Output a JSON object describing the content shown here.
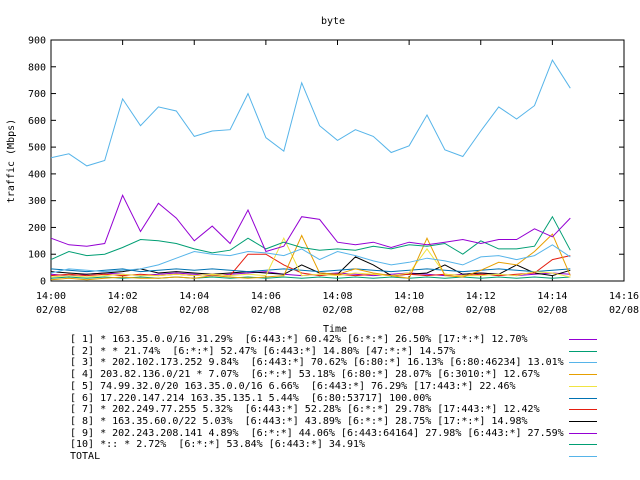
{
  "chart_data": {
    "type": "line",
    "title": "byte",
    "xlabel": "Time",
    "ylabel": "traffic (Mbps)",
    "ylim": [
      0,
      900
    ],
    "yticks": [
      "0",
      "100",
      "200",
      "300",
      "400",
      "500",
      "600",
      "700",
      "800",
      "900"
    ],
    "xlim": [
      0,
      16
    ],
    "xticks": [
      {
        "time": "14:00",
        "date": "02/08"
      },
      {
        "time": "14:02",
        "date": "02/08"
      },
      {
        "time": "14:04",
        "date": "02/08"
      },
      {
        "time": "14:06",
        "date": "02/08"
      },
      {
        "time": "14:08",
        "date": "02/08"
      },
      {
        "time": "14:10",
        "date": "02/08"
      },
      {
        "time": "14:12",
        "date": "02/08"
      },
      {
        "time": "14:14",
        "date": "02/08"
      },
      {
        "time": "14:16",
        "date": "02/08"
      }
    ],
    "x": [
      0.0,
      0.5,
      1.0,
      1.5,
      2.0,
      2.5,
      3.0,
      3.5,
      4.0,
      4.5,
      5.0,
      5.5,
      6.0,
      6.5,
      7.0,
      7.5,
      8.0,
      8.5,
      9.0,
      9.5,
      10.0,
      10.5,
      11.0,
      11.5,
      12.0,
      12.5,
      13.0,
      13.5,
      14.0,
      14.5
    ],
    "grid": false,
    "legend_position": "bottom",
    "series": [
      {
        "name": "[ 1] * 163.35.0.0/16 31.29%  [6:443:*] 60.42% [6:*:*] 26.50% [17:*:*] 12.70%",
        "color": "#9400d3",
        "values": [
          160,
          135,
          130,
          140,
          320,
          185,
          290,
          235,
          150,
          205,
          140,
          265,
          110,
          130,
          240,
          230,
          145,
          135,
          145,
          125,
          145,
          135,
          145,
          155,
          140,
          155,
          155,
          195,
          165,
          235
        ]
      },
      {
        "name": "[ 2] * * 21.74%  [6:*:*] 52.47% [6:443:*] 14.80% [47:*:*] 14.57%",
        "color": "#009e73",
        "values": [
          80,
          110,
          95,
          100,
          125,
          155,
          150,
          140,
          120,
          105,
          115,
          160,
          120,
          145,
          125,
          115,
          120,
          115,
          130,
          120,
          135,
          130,
          140,
          100,
          150,
          120,
          120,
          130,
          240,
          115
        ]
      },
      {
        "name": "[ 3] * 202.102.173.252 9.84%  [6:443:*] 70.62% [6:80:*] 16.13% [6:80:46234] 13.01%",
        "color": "#56b4e9",
        "values": [
          30,
          45,
          40,
          35,
          40,
          45,
          60,
          85,
          110,
          100,
          95,
          110,
          105,
          95,
          120,
          80,
          110,
          95,
          75,
          60,
          70,
          85,
          75,
          60,
          90,
          95,
          80,
          95,
          135,
          90
        ]
      },
      {
        "name": "[ 4] 203.82.136.0/21 * 7.07%  [6:*:*] 53.18% [6:80:*] 28.07% [6:3010:*] 12.67%",
        "color": "#e69f00",
        "values": [
          5,
          10,
          5,
          10,
          15,
          10,
          10,
          15,
          10,
          20,
          15,
          10,
          15,
          20,
          170,
          30,
          25,
          45,
          30,
          20,
          10,
          160,
          20,
          15,
          40,
          70,
          60,
          110,
          175,
          20
        ]
      },
      {
        "name": "[ 5] 74.99.32.0/20 163.35.0.0/16 6.66%  [6:443:*] 76.29% [17:443:*] 22.46%",
        "color": "#f0e442",
        "values": [
          15,
          20,
          15,
          20,
          25,
          20,
          20,
          25,
          20,
          25,
          20,
          25,
          20,
          160,
          20,
          25,
          20,
          30,
          25,
          20,
          30,
          120,
          25,
          20,
          20,
          25,
          20,
          35,
          30,
          15
        ]
      },
      {
        "name": "[ 6] 17.220.147.214 163.35.135.1 5.44%  [6:80:53717] 100.00%",
        "color": "#0072b2",
        "values": [
          45,
          40,
          35,
          40,
          45,
          35,
          40,
          45,
          40,
          45,
          40,
          35,
          40,
          45,
          40,
          35,
          40,
          45,
          40,
          35,
          40,
          45,
          40,
          35,
          40,
          45,
          40,
          35,
          40,
          45
        ]
      },
      {
        "name": "[ 7] * 202.249.77.255 5.32%  [6:443:*] 52.28% [6:*:*] 29.78% [17:443:*] 12.42%",
        "color": "#e51e10",
        "values": [
          20,
          25,
          20,
          25,
          20,
          25,
          20,
          25,
          20,
          25,
          20,
          100,
          100,
          60,
          30,
          20,
          25,
          20,
          25,
          20,
          25,
          20,
          25,
          20,
          25,
          20,
          25,
          30,
          80,
          95
        ]
      },
      {
        "name": "[ 8] * 163.35.60.0/22 5.03%  [6:443:*] 43.89% [6:*:*] 28.75% [17:*:*] 14.98%",
        "color": "#000000",
        "values": [
          35,
          30,
          25,
          30,
          35,
          45,
          30,
          35,
          30,
          25,
          30,
          35,
          30,
          25,
          60,
          30,
          25,
          90,
          60,
          20,
          25,
          30,
          60,
          25,
          30,
          25,
          60,
          30,
          20,
          40
        ]
      },
      {
        "name": "[ 9] * 202.243.208.141 4.89%  [6:*:*] 44.06% [6:443:64164] 27.98% [6:443:*] 27.59%",
        "color": "#9400d3",
        "values": [
          25,
          20,
          25,
          30,
          25,
          20,
          25,
          30,
          25,
          20,
          25,
          30,
          35,
          25,
          20,
          25,
          30,
          25,
          20,
          25,
          30,
          25,
          20,
          25,
          30,
          25,
          20,
          25,
          30,
          25
        ]
      },
      {
        "name": "[10] *:: * 2.72%  [6:*:*] 53.84% [6:443:*] 34.91%",
        "color": "#009e73",
        "values": [
          10,
          15,
          10,
          15,
          10,
          15,
          10,
          15,
          10,
          15,
          10,
          15,
          10,
          15,
          10,
          15,
          10,
          15,
          10,
          15,
          10,
          15,
          10,
          15,
          10,
          15,
          10,
          15,
          10,
          15
        ]
      },
      {
        "name": "TOTAL",
        "color": "#56b4e9",
        "values": [
          460,
          475,
          430,
          450,
          680,
          580,
          650,
          635,
          540,
          560,
          565,
          700,
          535,
          485,
          740,
          580,
          525,
          565,
          540,
          480,
          505,
          620,
          490,
          465,
          560,
          650,
          605,
          655,
          825,
          720
        ]
      }
    ]
  }
}
